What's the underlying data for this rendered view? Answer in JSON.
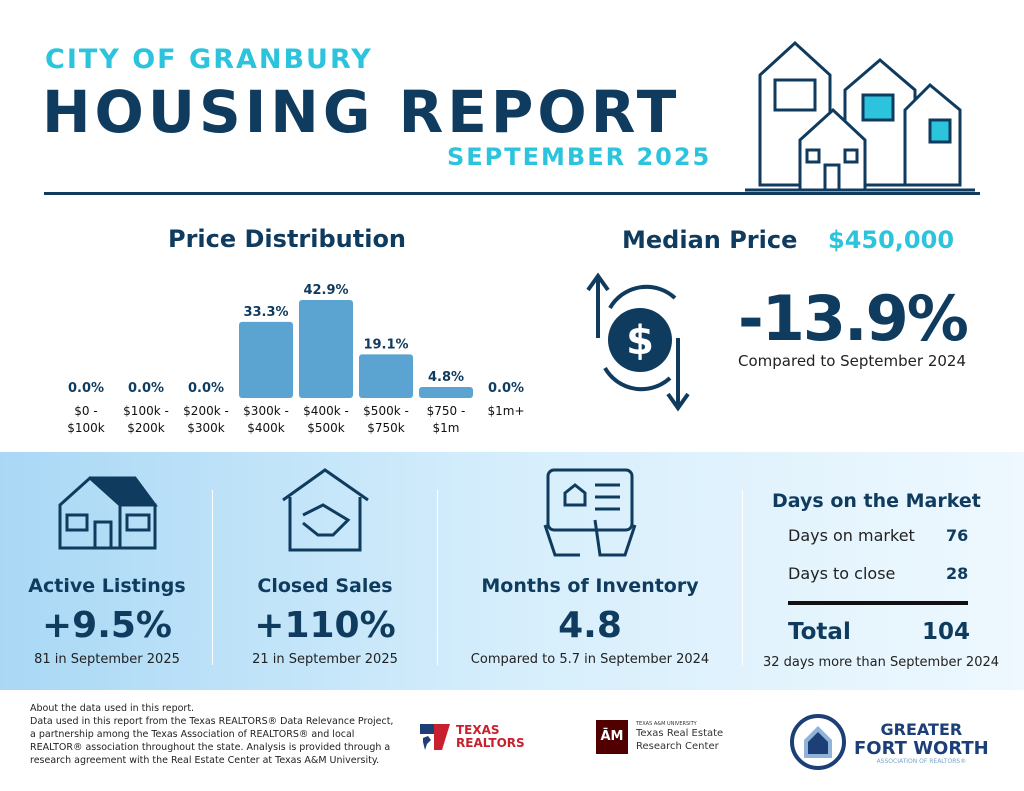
{
  "header": {
    "city": "CITY OF GRANBURY",
    "title": "HOUSING REPORT",
    "month": "SEPTEMBER 2025"
  },
  "price_distribution": {
    "title": "Price Distribution"
  },
  "chart_data": {
    "type": "bar",
    "title": "Price Distribution",
    "categories": [
      "$0 - $100k",
      "$100k - $200k",
      "$200k - $300k",
      "$300k - $400k",
      "$400k - $500k",
      "$500k - $750k",
      "$750 - $1m",
      "$1m+"
    ],
    "category_lines": [
      [
        "$0 -",
        "$100k"
      ],
      [
        "$100k -",
        "$200k"
      ],
      [
        "$200k -",
        "$300k"
      ],
      [
        "$300k -",
        "$400k"
      ],
      [
        "$400k -",
        "$500k"
      ],
      [
        "$500k -",
        "$750k"
      ],
      [
        "$750 -",
        "$1m"
      ],
      [
        "$1m+",
        ""
      ]
    ],
    "values": [
      0.0,
      0.0,
      0.0,
      33.3,
      42.9,
      19.1,
      4.8,
      0.0
    ],
    "labels": [
      "0.0%",
      "0.0%",
      "0.0%",
      "33.3%",
      "42.9%",
      "19.1%",
      "4.8%",
      "0.0%"
    ],
    "color": "#5ba3d0",
    "grid": false
  },
  "median": {
    "label": "Median Price",
    "value": "$450,000",
    "change": "-13.9%",
    "compare": "Compared to September 2024"
  },
  "stats": [
    {
      "label": "Active Listings",
      "value": "+9.5%",
      "sub": "81 in September 2025",
      "icon": "house-icon"
    },
    {
      "label": "Closed Sales",
      "value": "+110%",
      "sub": "21 in September 2025",
      "icon": "handshake-icon"
    },
    {
      "label": "Months of Inventory",
      "value": "4.8",
      "sub": "Compared to 5.7 in September 2024",
      "icon": "tablet-icon"
    }
  ],
  "dom": {
    "title": "Days on the Market",
    "rows": [
      {
        "label": "Days on market",
        "value": "76"
      },
      {
        "label": "Days to close",
        "value": "28"
      }
    ],
    "total_label": "Total",
    "total_value": "104",
    "sub": "32 days more than September 2024"
  },
  "footer": {
    "lines": [
      "About the data used in this report.",
      "Data used in this report from the Texas REALTORS® Data Relevance Project, a partnership among the Texas Association of REALTORS® and local REALTOR® association throughout the state. Analysis is provided through a research agreement with the Real Estate Center at Texas A&M University."
    ],
    "logos": {
      "texas_realtors": "TEXAS REALTORS",
      "tamu_small": "TEXAS A&M UNIVERSITY",
      "tamu": "Texas Real Estate Research Center",
      "gfw_1": "GREATER",
      "gfw_2": "FORT WORTH",
      "gfw_3": "ASSOCIATION OF REALTORS®"
    }
  },
  "colors": {
    "navy": "#0f3b5f",
    "teal": "#2cc4dc",
    "bar": "#5ba3d0"
  }
}
